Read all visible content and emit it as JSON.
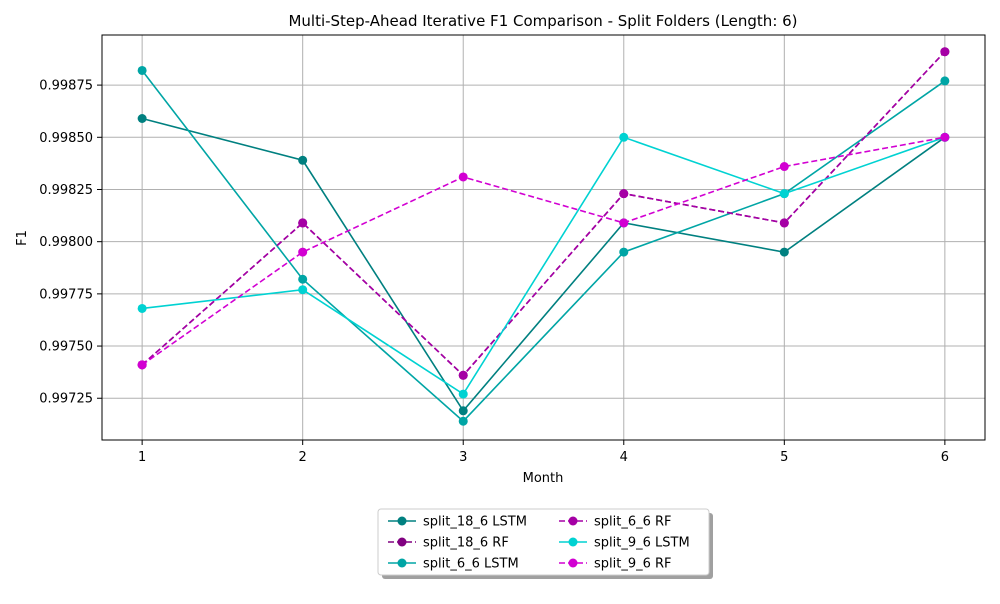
{
  "chart_data": {
    "type": "line",
    "title": "Multi-Step-Ahead Iterative F1 Comparison - Split Folders (Length: 6)",
    "xlabel": "Month",
    "ylabel": "F1",
    "x": [
      1,
      2,
      3,
      4,
      5,
      6
    ],
    "xlim": [
      0.75,
      6.25
    ],
    "ylim": [
      0.99705,
      0.99899
    ],
    "yticks": [
      "0.99725",
      "0.99750",
      "0.99775",
      "0.99800",
      "0.99825",
      "0.99850",
      "0.99875"
    ],
    "ytick_values": [
      0.99725,
      0.9975,
      0.99775,
      0.998,
      0.99825,
      0.9985,
      0.99875
    ],
    "xticks": [
      "1",
      "2",
      "3",
      "4",
      "5",
      "6"
    ],
    "grid": true,
    "legend_position": "bottom-center",
    "legend_columns": 2,
    "series": [
      {
        "name": "split_18_6 LSTM",
        "color": "#008080",
        "style": "solid",
        "values": [
          0.99859,
          0.99839,
          0.99719,
          0.99809,
          0.99795,
          0.9985
        ]
      },
      {
        "name": "split_18_6 RF",
        "color": "#800080",
        "style": "dashed",
        "values": [
          0.99741,
          0.99809,
          0.99736,
          0.99823,
          0.99809,
          0.99891
        ]
      },
      {
        "name": "split_6_6 LSTM",
        "color": "#00A5A5",
        "style": "solid",
        "values": [
          0.99882,
          0.99782,
          0.99714,
          0.99795,
          0.99823,
          0.99877
        ]
      },
      {
        "name": "split_6_6 RF",
        "color": "#A500A5",
        "style": "dashed",
        "values": [
          0.99741,
          0.99809,
          0.99736,
          0.99823,
          0.99809,
          0.99891
        ]
      },
      {
        "name": "split_9_6 LSTM",
        "color": "#00D2D2",
        "style": "solid",
        "values": [
          0.99768,
          0.99777,
          0.99727,
          0.9985,
          0.99823,
          0.9985
        ]
      },
      {
        "name": "split_9_6 RF",
        "color": "#D200D2",
        "style": "dashed",
        "values": [
          0.99741,
          0.99795,
          0.99831,
          0.99809,
          0.99836,
          0.9985
        ]
      }
    ]
  }
}
